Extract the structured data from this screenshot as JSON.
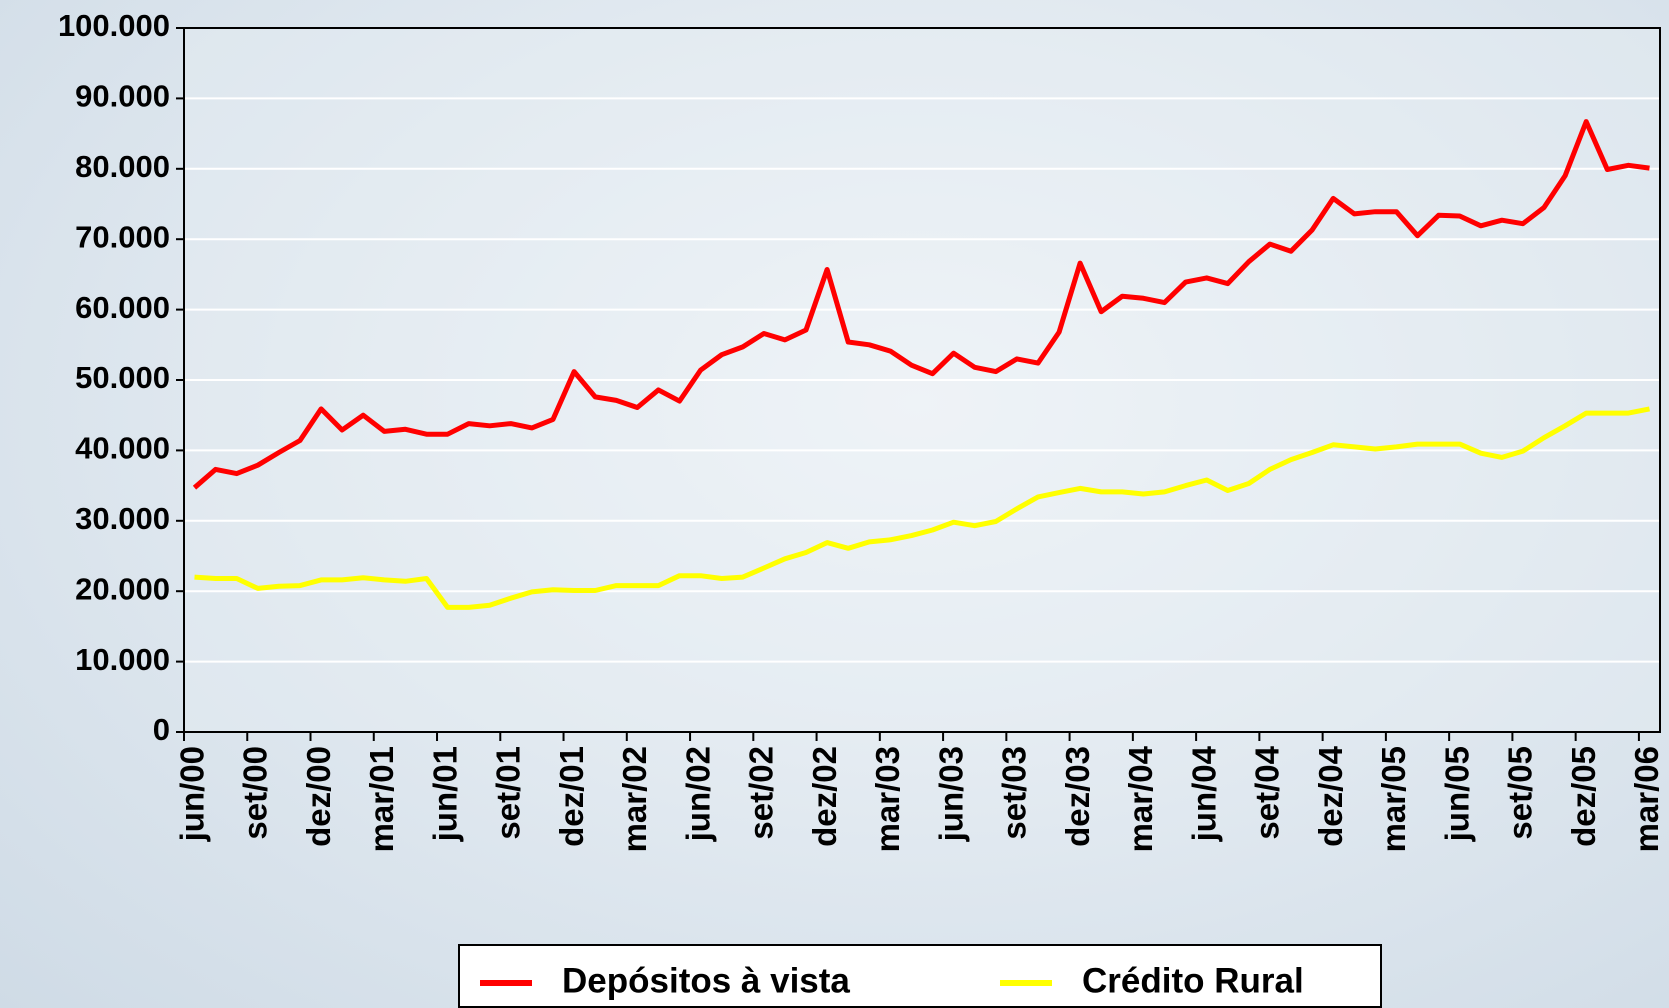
{
  "chart_data": {
    "type": "line",
    "categories": [
      "jun/00",
      null,
      null,
      "set/00",
      null,
      null,
      "dez/00",
      null,
      null,
      "mar/01",
      null,
      null,
      "jun/01",
      null,
      null,
      "set/01",
      null,
      null,
      "dez/01",
      null,
      null,
      "mar/02",
      null,
      null,
      "jun/02",
      null,
      null,
      "set/02",
      null,
      null,
      "dez/02",
      null,
      null,
      "mar/03",
      null,
      null,
      "jun/03",
      null,
      null,
      "set/03",
      null,
      null,
      "dez/03",
      null,
      null,
      "mar/04",
      null,
      null,
      "jun/04",
      null,
      null,
      "set/04",
      null,
      null,
      "dez/04",
      null,
      null,
      "mar/05",
      null,
      null,
      "jun/05",
      null,
      null,
      "set/05",
      null,
      null,
      "dez/05",
      null,
      null,
      "mar/06"
    ],
    "series": [
      {
        "name": "Depósitos à vista",
        "color": "#ff0000",
        "values": [
          34700,
          37300,
          36700,
          37900,
          39700,
          41400,
          45900,
          42900,
          45000,
          42700,
          43000,
          42300,
          42300,
          43800,
          43500,
          43800,
          43200,
          44400,
          51200,
          47600,
          47100,
          46100,
          48600,
          47000,
          51400,
          53600,
          54700,
          56600,
          55700,
          57100,
          65700,
          55400,
          55000,
          54100,
          52100,
          50900,
          53800,
          51800,
          51200,
          53000,
          52400,
          56800,
          66600,
          59700,
          61900,
          61600,
          61000,
          63900,
          64500,
          63700,
          66800,
          69300,
          68300,
          71300,
          75800,
          73600,
          73900,
          73900,
          70500,
          73400,
          73300,
          71900,
          72700,
          72200,
          74500,
          79000,
          86700,
          79900,
          80500,
          80100
        ]
      },
      {
        "name": "Crédito Rural",
        "color": "#ffff00",
        "values": [
          22000,
          21800,
          21800,
          20400,
          20700,
          20800,
          21600,
          21600,
          21900,
          21600,
          21400,
          21800,
          17700,
          17700,
          18000,
          19000,
          19900,
          20200,
          20100,
          20100,
          20800,
          20800,
          20800,
          22200,
          22200,
          21800,
          22000,
          23300,
          24600,
          25500,
          26900,
          26100,
          27000,
          27300,
          27900,
          28700,
          29800,
          29300,
          29900,
          31700,
          33400,
          34000,
          34600,
          34100,
          34100,
          33800,
          34100,
          35000,
          35800,
          34300,
          35300,
          37300,
          38700,
          39700,
          40800,
          40500,
          40200,
          40500,
          40900,
          40900,
          40900,
          39600,
          39000,
          39900,
          41800,
          43500,
          45300,
          45300,
          45300,
          45900
        ]
      }
    ],
    "ylim": [
      0,
      100000
    ],
    "yticks": [
      0,
      {
        "value": 10000,
        "label": "10.000"
      },
      {
        "value": 20000,
        "label": "20.000"
      },
      {
        "value": 30000,
        "label": "30.000"
      },
      {
        "value": 40000,
        "label": "40.000"
      },
      {
        "value": 50000,
        "label": "50.000"
      },
      {
        "value": 60000,
        "label": "60.000"
      },
      {
        "value": 70000,
        "label": "70.000"
      },
      {
        "value": 80000,
        "label": "80.000"
      },
      {
        "value": 90000,
        "label": "90.000"
      },
      {
        "value": 100000,
        "label": "100.000"
      }
    ],
    "grid": true,
    "legend": "bottom"
  }
}
